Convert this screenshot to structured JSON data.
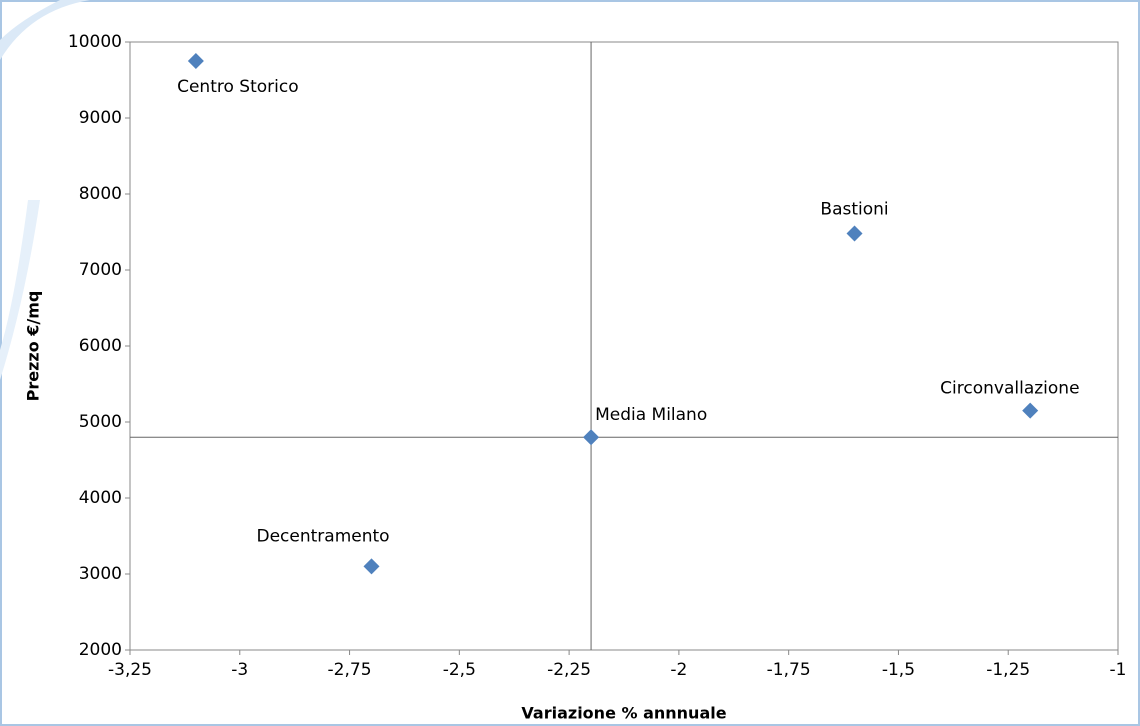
{
  "chart_data": {
    "type": "scatter",
    "x_label": "Variazione % annnuale",
    "y_label": "Prezzo €/mq",
    "x": [
      -3.1,
      -1.6,
      -1.2,
      -2.2,
      -2.7
    ],
    "values": [
      9750,
      7480,
      5150,
      4800,
      3100
    ],
    "point_labels": [
      "Centro Storico",
      "Bastioni",
      "Circonvallazione",
      "Media Milano",
      "Decentramento"
    ],
    "color": "#4f81bd",
    "xlim": [
      -3.25,
      -1
    ],
    "xticks": [
      {
        "value": -3.25,
        "label": "-3,25"
      },
      {
        "value": -3,
        "label": "-3"
      },
      {
        "value": -2.75,
        "label": "-2,75"
      },
      {
        "value": -2.5,
        "label": "-2,5"
      },
      {
        "value": -2.25,
        "label": "-2,25"
      },
      {
        "value": -2,
        "label": "-2"
      },
      {
        "value": -1.75,
        "label": "-1,75"
      },
      {
        "value": -1.5,
        "label": "-1,5"
      },
      {
        "value": -1.25,
        "label": "-1,25"
      },
      {
        "value": -1,
        "label": "-1"
      }
    ],
    "ylim": [
      2000,
      10000
    ],
    "yticks": [
      2000,
      3000,
      4000,
      5000,
      6000,
      7000,
      8000,
      9000,
      10000
    ],
    "reference_lines": {
      "x": -2.2,
      "y": 4800
    }
  }
}
